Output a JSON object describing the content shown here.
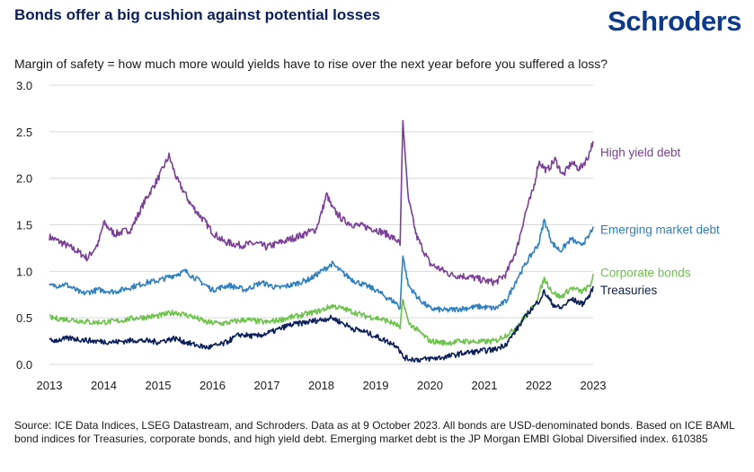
{
  "header": {
    "title": "Bonds offer a big cushion against potential losses",
    "logo": "Schroders"
  },
  "source_note": "Source: ICE Data Indices, LSEG Datastream, and Schroders. Data as at 9 October 2023. All bonds are USD-denominated bonds. Based on ICE BAML bond indices for Treasuries, corporate bonds, and high yield debt. Emerging market debt is the JP Morgan EMBI Global Diversified index. 610385",
  "chart_data": {
    "type": "line",
    "title": "",
    "subtitle": "Margin of safety = how much more would yields have to rise over the next year before you suffered a loss?",
    "xlabel": "",
    "ylabel": "",
    "xlim": [
      2013,
      2023.0
    ],
    "ylim": [
      0,
      3.0
    ],
    "x_ticks": [
      "2013",
      "2014",
      "2015",
      "2016",
      "2017",
      "2018",
      "2019",
      "2020",
      "2021",
      "2022",
      "2023"
    ],
    "y_ticks": [
      "0.0",
      "0.5",
      "1.0",
      "1.5",
      "2.0",
      "2.5",
      "3.0"
    ],
    "grid": true,
    "legend": "inline-right",
    "series": [
      {
        "name": "High yield debt",
        "color": "#7b3f98",
        "x": [
          2013.0,
          2013.25,
          2013.5,
          2013.7,
          2013.9,
          2014.0,
          2014.2,
          2014.5,
          2014.75,
          2015.0,
          2015.2,
          2015.35,
          2015.45,
          2015.6,
          2015.85,
          2016.0,
          2016.2,
          2016.5,
          2016.8,
          2017.0,
          2017.3,
          2017.6,
          2017.9,
          2018.0,
          2018.1,
          2018.2,
          2018.4,
          2018.6,
          2018.8,
          2019.0,
          2019.2,
          2019.4,
          2019.45,
          2019.5,
          2019.6,
          2019.75,
          2019.9,
          2020.0,
          2020.2,
          2020.4,
          2020.6,
          2020.8,
          2021.0,
          2021.2,
          2021.4,
          2021.6,
          2021.75,
          2021.9,
          2022.0,
          2022.15,
          2022.3,
          2022.45,
          2022.6,
          2022.75,
          2022.9,
          2023.0
        ],
        "y": [
          1.37,
          1.3,
          1.22,
          1.14,
          1.3,
          1.52,
          1.4,
          1.45,
          1.75,
          2.0,
          2.24,
          1.98,
          1.88,
          1.72,
          1.54,
          1.42,
          1.32,
          1.28,
          1.3,
          1.26,
          1.32,
          1.38,
          1.45,
          1.62,
          1.83,
          1.68,
          1.55,
          1.5,
          1.48,
          1.45,
          1.4,
          1.33,
          1.28,
          2.62,
          1.78,
          1.38,
          1.2,
          1.08,
          1.02,
          0.96,
          0.95,
          0.93,
          0.9,
          0.88,
          0.97,
          1.25,
          1.62,
          1.88,
          2.18,
          2.08,
          2.2,
          2.03,
          2.17,
          2.1,
          2.22,
          2.4
        ]
      },
      {
        "name": "Emerging market debt",
        "color": "#2f80c0",
        "x": [
          2013.0,
          2013.3,
          2013.6,
          2013.9,
          2014.2,
          2014.5,
          2014.8,
          2015.0,
          2015.25,
          2015.5,
          2015.75,
          2016.0,
          2016.3,
          2016.6,
          2016.9,
          2017.2,
          2017.5,
          2017.8,
          2018.0,
          2018.2,
          2018.4,
          2018.6,
          2018.8,
          2019.0,
          2019.2,
          2019.4,
          2019.45,
          2019.5,
          2019.6,
          2019.8,
          2020.0,
          2020.3,
          2020.6,
          2020.9,
          2021.2,
          2021.4,
          2021.6,
          2021.8,
          2022.0,
          2022.1,
          2022.25,
          2022.4,
          2022.6,
          2022.75,
          2022.9,
          2023.0
        ],
        "y": [
          0.84,
          0.86,
          0.76,
          0.8,
          0.78,
          0.83,
          0.88,
          0.9,
          0.95,
          1.0,
          0.9,
          0.8,
          0.85,
          0.8,
          0.88,
          0.82,
          0.86,
          0.92,
          1.0,
          1.08,
          0.98,
          0.9,
          0.85,
          0.8,
          0.72,
          0.65,
          0.6,
          1.17,
          0.85,
          0.7,
          0.6,
          0.58,
          0.6,
          0.62,
          0.6,
          0.68,
          0.92,
          1.12,
          1.3,
          1.55,
          1.3,
          1.22,
          1.35,
          1.28,
          1.35,
          1.48
        ]
      },
      {
        "name": "Corporate bonds",
        "color": "#6cc24a",
        "x": [
          2013.0,
          2013.4,
          2013.8,
          2014.2,
          2014.6,
          2015.0,
          2015.3,
          2015.6,
          2015.9,
          2016.2,
          2016.6,
          2017.0,
          2017.4,
          2017.8,
          2018.0,
          2018.2,
          2018.5,
          2018.8,
          2019.0,
          2019.2,
          2019.4,
          2019.45,
          2019.5,
          2019.6,
          2019.8,
          2020.0,
          2020.3,
          2020.6,
          2020.9,
          2021.2,
          2021.5,
          2021.7,
          2021.9,
          2022.0,
          2022.1,
          2022.25,
          2022.4,
          2022.6,
          2022.8,
          2022.95,
          2023.0
        ],
        "y": [
          0.5,
          0.48,
          0.45,
          0.46,
          0.5,
          0.52,
          0.56,
          0.52,
          0.45,
          0.44,
          0.48,
          0.45,
          0.5,
          0.55,
          0.58,
          0.63,
          0.58,
          0.52,
          0.5,
          0.47,
          0.42,
          0.38,
          0.7,
          0.45,
          0.35,
          0.25,
          0.23,
          0.25,
          0.24,
          0.25,
          0.35,
          0.48,
          0.62,
          0.75,
          0.92,
          0.78,
          0.72,
          0.82,
          0.78,
          0.85,
          0.97
        ]
      },
      {
        "name": "Treasuries",
        "color": "#0b1f5c",
        "x": [
          2013.0,
          2013.4,
          2013.8,
          2014.2,
          2014.6,
          2015.0,
          2015.3,
          2015.6,
          2015.9,
          2016.2,
          2016.5,
          2016.8,
          2017.1,
          2017.4,
          2017.7,
          2018.0,
          2018.2,
          2018.4,
          2018.6,
          2018.8,
          2019.0,
          2019.2,
          2019.4,
          2019.5,
          2019.6,
          2019.8,
          2020.0,
          2020.3,
          2020.6,
          2020.9,
          2021.2,
          2021.4,
          2021.6,
          2021.8,
          2022.0,
          2022.1,
          2022.25,
          2022.4,
          2022.6,
          2022.8,
          2022.95,
          2023.0
        ],
        "y": [
          0.25,
          0.28,
          0.25,
          0.24,
          0.26,
          0.24,
          0.28,
          0.22,
          0.18,
          0.22,
          0.32,
          0.3,
          0.35,
          0.42,
          0.45,
          0.48,
          0.5,
          0.44,
          0.38,
          0.35,
          0.3,
          0.25,
          0.2,
          0.08,
          0.06,
          0.05,
          0.06,
          0.08,
          0.12,
          0.14,
          0.16,
          0.22,
          0.38,
          0.55,
          0.68,
          0.78,
          0.65,
          0.6,
          0.7,
          0.65,
          0.75,
          0.84
        ]
      }
    ]
  }
}
